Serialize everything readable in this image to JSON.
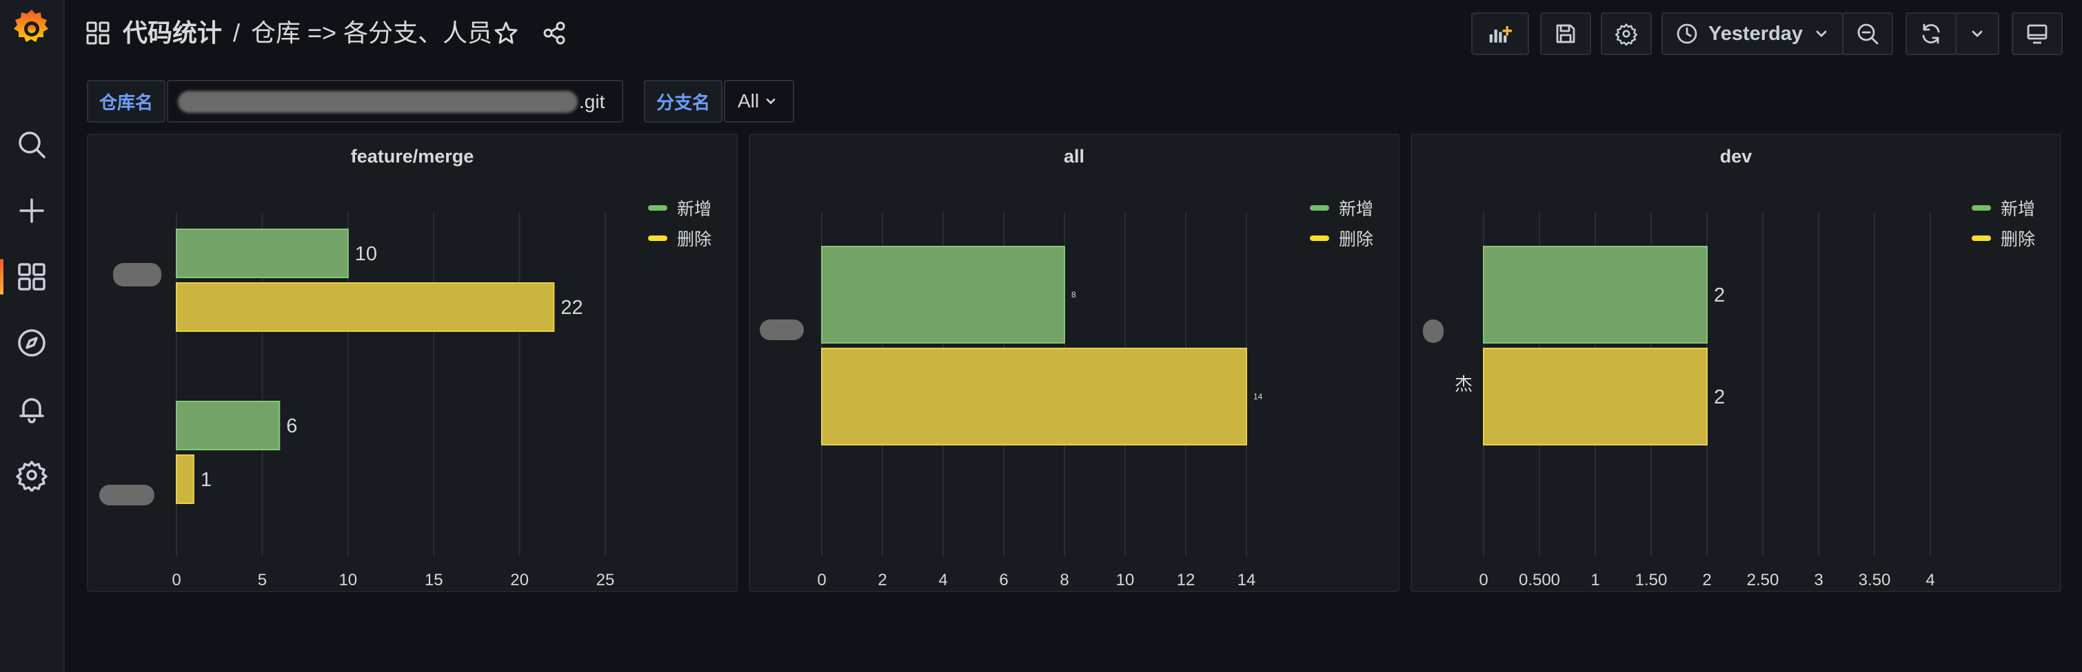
{
  "colors": {
    "added": "#73a366",
    "deleted": "#cbb43f",
    "accent": "#6e9fff"
  },
  "sidebar": {
    "logo": "grafana-logo",
    "items": [
      {
        "name": "search",
        "icon": "search-icon"
      },
      {
        "name": "create",
        "icon": "plus-icon"
      },
      {
        "name": "dashboards",
        "icon": "dashboard-grid-icon",
        "active": true
      },
      {
        "name": "explore",
        "icon": "compass-icon"
      },
      {
        "name": "alerting",
        "icon": "bell-icon"
      },
      {
        "name": "configuration",
        "icon": "gear-icon"
      }
    ]
  },
  "header": {
    "folder": "代码统计",
    "separator": "/",
    "dashboard_title": "仓库 => 各分支、人员",
    "time_range": "Yesterday"
  },
  "variables": [
    {
      "label": "仓库名",
      "value": ".git"
    },
    {
      "label": "分支名",
      "value": "All"
    }
  ],
  "legend": {
    "added": "新增",
    "deleted": "删除"
  },
  "chart_data": [
    {
      "type": "bar",
      "orientation": "horizontal",
      "title": "feature/merge",
      "categories": [
        "",
        ""
      ],
      "series": [
        {
          "name": "新增",
          "values": [
            10,
            6
          ]
        },
        {
          "name": "删除",
          "values": [
            22,
            1
          ]
        }
      ],
      "value_labels": [
        [
          "10",
          "6"
        ],
        [
          "22",
          "1"
        ]
      ],
      "xlim": [
        0,
        25
      ],
      "xticks": [
        "0",
        "5",
        "10",
        "15",
        "20",
        "25"
      ]
    },
    {
      "type": "bar",
      "orientation": "horizontal",
      "title": "all",
      "categories": [
        ""
      ],
      "series": [
        {
          "name": "新增",
          "values": [
            8
          ]
        },
        {
          "name": "删除",
          "values": [
            14
          ]
        }
      ],
      "value_labels": [
        [
          "8"
        ],
        [
          "14"
        ]
      ],
      "xlim": [
        0,
        14
      ],
      "xticks": [
        "0",
        "2",
        "4",
        "6",
        "8",
        "10",
        "12",
        "14"
      ]
    },
    {
      "type": "bar",
      "orientation": "horizontal",
      "title": "dev",
      "categories": [
        "杰"
      ],
      "series": [
        {
          "name": "新增",
          "values": [
            2
          ]
        },
        {
          "name": "删除",
          "values": [
            2
          ]
        }
      ],
      "value_labels": [
        [
          "2"
        ],
        [
          "2"
        ]
      ],
      "xlim": [
        0,
        4
      ],
      "xticks": [
        "0",
        "0.500",
        "1",
        "1.50",
        "2",
        "2.50",
        "3",
        "3.50",
        "4"
      ]
    }
  ]
}
